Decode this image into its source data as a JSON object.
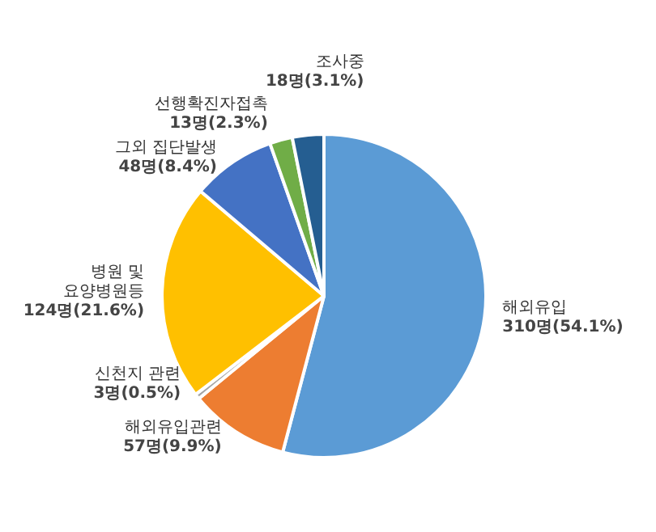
{
  "chart_data": {
    "type": "pie",
    "categories": [
      "해외유입",
      "해외유입관련",
      "신천지 관련",
      "병원 및\n요양병원등",
      "그외 집단발생",
      "선행확진자접촉",
      "조사중"
    ],
    "values": [
      310,
      57,
      3,
      124,
      48,
      13,
      18
    ],
    "value_labels": [
      "310명(54.1%)",
      "57명(9.9%)",
      "3명(0.5%)",
      "124명(21.6%)",
      "48명(8.4%)",
      "13명(2.3%)",
      "18명(3.1%)"
    ],
    "colors": [
      "#5b9bd5",
      "#ed7d31",
      "#a5a5a5",
      "#ffc000",
      "#4472c4",
      "#70ad47",
      "#255e91"
    ],
    "legend": false
  }
}
